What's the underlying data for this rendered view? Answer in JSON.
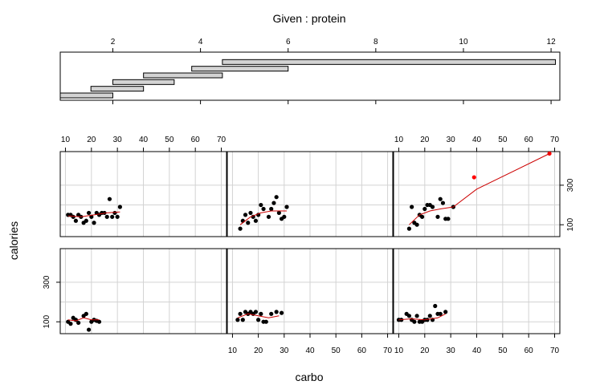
{
  "chart_data": {
    "type": "scatter",
    "title": "Given : protein",
    "xlabel": "carbo",
    "ylabel": "calories",
    "given": {
      "variable": "protein",
      "ticks": [
        2,
        4,
        6,
        8,
        10,
        12
      ],
      "range": [
        0.8,
        12.2
      ],
      "intervals": [
        [
          0.8,
          2.0
        ],
        [
          1.5,
          2.7
        ],
        [
          2.0,
          3.4
        ],
        [
          2.7,
          4.5
        ],
        [
          3.8,
          6.0
        ],
        [
          4.5,
          12.1
        ]
      ]
    },
    "xlim": [
      8,
      72
    ],
    "ylim": [
      40,
      470
    ],
    "xticks": [
      10,
      20,
      30,
      40,
      50,
      60,
      70
    ],
    "yticks": [
      100,
      300
    ],
    "grid": true,
    "panels": [
      {
        "given_interval": 1,
        "points": [
          [
            11,
            100
          ],
          [
            12,
            90
          ],
          [
            13,
            120
          ],
          [
            14,
            110
          ],
          [
            15,
            95
          ],
          [
            17,
            130
          ],
          [
            18,
            140
          ],
          [
            19,
            60
          ],
          [
            20,
            100
          ],
          [
            21,
            110
          ],
          [
            22,
            105
          ],
          [
            23,
            100
          ]
        ],
        "smooth": [
          [
            11,
            110
          ],
          [
            14,
            105
          ],
          [
            17,
            120
          ],
          [
            20,
            110
          ],
          [
            23,
            110
          ]
        ]
      },
      {
        "given_interval": 2,
        "points": [
          [
            12,
            110
          ],
          [
            13,
            140
          ],
          [
            14,
            110
          ],
          [
            15,
            150
          ],
          [
            16,
            140
          ],
          [
            17,
            150
          ],
          [
            18,
            140
          ],
          [
            19,
            150
          ],
          [
            20,
            110
          ],
          [
            21,
            140
          ],
          [
            22,
            100
          ],
          [
            23,
            100
          ],
          [
            25,
            140
          ],
          [
            27,
            150
          ],
          [
            29,
            145
          ]
        ],
        "smooth": [
          [
            12,
            120
          ],
          [
            16,
            140
          ],
          [
            20,
            130
          ],
          [
            24,
            120
          ],
          [
            28,
            130
          ]
        ]
      },
      {
        "given_interval": 3,
        "points": [
          [
            10,
            110
          ],
          [
            11,
            110
          ],
          [
            13,
            140
          ],
          [
            14,
            130
          ],
          [
            15,
            110
          ],
          [
            16,
            100
          ],
          [
            17,
            130
          ],
          [
            18,
            100
          ],
          [
            19,
            100
          ],
          [
            20,
            110
          ],
          [
            21,
            110
          ],
          [
            22,
            130
          ],
          [
            23,
            110
          ],
          [
            24,
            180
          ],
          [
            25,
            140
          ],
          [
            26,
            140
          ],
          [
            28,
            150
          ]
        ],
        "smooth": [
          [
            10,
            110
          ],
          [
            15,
            115
          ],
          [
            20,
            110
          ],
          [
            25,
            120
          ],
          [
            28,
            140
          ]
        ]
      },
      {
        "given_interval": 4,
        "points": [
          [
            11,
            150
          ],
          [
            12,
            150
          ],
          [
            13,
            140
          ],
          [
            14,
            120
          ],
          [
            15,
            150
          ],
          [
            16,
            140
          ],
          [
            17,
            110
          ],
          [
            18,
            120
          ],
          [
            19,
            160
          ],
          [
            20,
            140
          ],
          [
            21,
            110
          ],
          [
            22,
            160
          ],
          [
            23,
            150
          ],
          [
            24,
            160
          ],
          [
            25,
            160
          ],
          [
            26,
            140
          ],
          [
            27,
            230
          ],
          [
            28,
            140
          ],
          [
            29,
            160
          ],
          [
            30,
            140
          ],
          [
            31,
            190
          ]
        ],
        "smooth": [
          [
            11,
            145
          ],
          [
            16,
            140
          ],
          [
            21,
            150
          ],
          [
            26,
            160
          ],
          [
            31,
            165
          ]
        ]
      },
      {
        "given_interval": 5,
        "points": [
          [
            13,
            80
          ],
          [
            14,
            120
          ],
          [
            15,
            150
          ],
          [
            16,
            110
          ],
          [
            17,
            160
          ],
          [
            18,
            140
          ],
          [
            19,
            120
          ],
          [
            20,
            150
          ],
          [
            21,
            200
          ],
          [
            22,
            180
          ],
          [
            24,
            140
          ],
          [
            25,
            180
          ],
          [
            26,
            210
          ],
          [
            27,
            240
          ],
          [
            28,
            160
          ],
          [
            29,
            130
          ],
          [
            30,
            140
          ],
          [
            31,
            190
          ]
        ],
        "smooth": [
          [
            13,
            100
          ],
          [
            17,
            140
          ],
          [
            21,
            160
          ],
          [
            25,
            170
          ],
          [
            31,
            170
          ]
        ]
      },
      {
        "given_interval": 6,
        "points": [
          [
            14,
            80
          ],
          [
            15,
            190
          ],
          [
            16,
            110
          ],
          [
            17,
            100
          ],
          [
            18,
            150
          ],
          [
            19,
            140
          ],
          [
            20,
            180
          ],
          [
            21,
            200
          ],
          [
            22,
            200
          ],
          [
            23,
            190
          ],
          [
            25,
            140
          ],
          [
            26,
            230
          ],
          [
            27,
            210
          ],
          [
            28,
            130
          ],
          [
            29,
            130
          ],
          [
            31,
            190
          ],
          [
            39,
            340
          ],
          [
            68,
            460
          ]
        ],
        "highlight": [
          [
            39,
            340
          ],
          [
            68,
            460
          ]
        ],
        "smooth": [
          [
            14,
            100
          ],
          [
            18,
            150
          ],
          [
            22,
            170
          ],
          [
            26,
            180
          ],
          [
            31,
            190
          ],
          [
            40,
            280
          ],
          [
            68,
            460
          ]
        ]
      }
    ]
  },
  "colors": {
    "points": "#000000",
    "highlight": "#ff0000",
    "smooth": "#cc0000",
    "grid": "#d3d3d3",
    "bar_fill": "#d3d3d3"
  }
}
